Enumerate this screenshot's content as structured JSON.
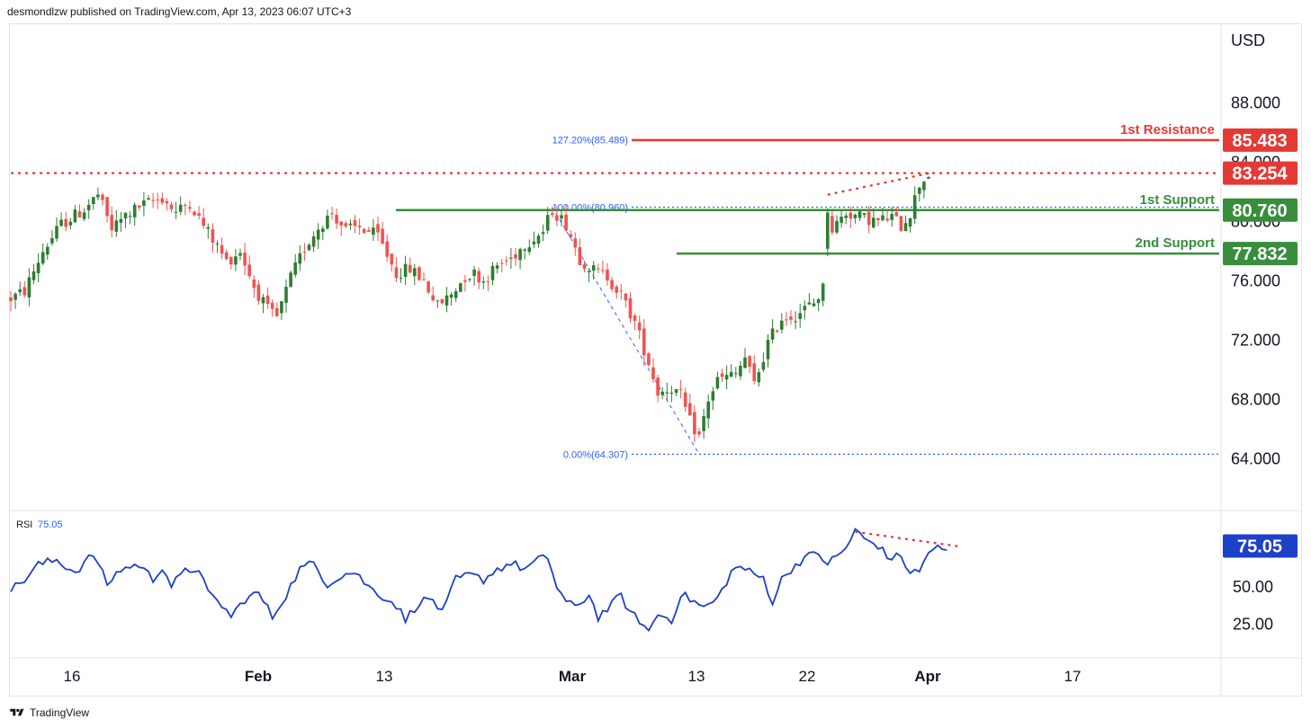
{
  "header": {
    "publisher": "desmondlzw published on TradingView.com, Apr 13, 2023 06:07 UTC+3"
  },
  "footer": {
    "brand": "TradingView"
  },
  "colors": {
    "bull": "#26a69a",
    "bull_body": "#2e7d32",
    "bear": "#ef5350",
    "support": "#388e3c",
    "resistance": "#e53935",
    "rsi": "#1e40c8",
    "fib": "#2962ff"
  },
  "chart_data": [
    {
      "type": "candlestick",
      "currency_label": "USD",
      "y_ticks": [
        "88.000",
        "84.000",
        "80.000",
        "76.000",
        "72.000",
        "68.000",
        "64.000"
      ],
      "y_tick_values": [
        88,
        84,
        80,
        76,
        72,
        68,
        64
      ],
      "ylim": [
        61.0,
        92.5
      ],
      "x_tick_labels": [
        {
          "label": "16",
          "bold": false
        },
        {
          "label": "Feb",
          "bold": true
        },
        {
          "label": "13",
          "bold": false
        },
        {
          "label": "Mar",
          "bold": true
        },
        {
          "label": "13",
          "bold": false
        },
        {
          "label": "22",
          "bold": false
        },
        {
          "label": "Apr",
          "bold": true
        },
        {
          "label": "17",
          "bold": false
        }
      ],
      "waypoints": [
        [
          0,
          74.8
        ],
        [
          3,
          75.3
        ],
        [
          7,
          78.0
        ],
        [
          11,
          79.8
        ],
        [
          16,
          80.8
        ],
        [
          19,
          81.8
        ],
        [
          22,
          79.5
        ],
        [
          25,
          80.4
        ],
        [
          28,
          81.0
        ],
        [
          33,
          81.6
        ],
        [
          36,
          80.6
        ],
        [
          39,
          81.3
        ],
        [
          41,
          80.2
        ],
        [
          44,
          78.8
        ],
        [
          47,
          77.3
        ],
        [
          50,
          78.0
        ],
        [
          53,
          75.6
        ],
        [
          56,
          74.0
        ],
        [
          58,
          73.5
        ],
        [
          61,
          76.2
        ],
        [
          64,
          78.2
        ],
        [
          67,
          79.6
        ],
        [
          70,
          80.6
        ],
        [
          73,
          79.4
        ],
        [
          76,
          79.6
        ],
        [
          80,
          79.0
        ],
        [
          84,
          76.5
        ],
        [
          87,
          76.8
        ],
        [
          90,
          76.0
        ],
        [
          93,
          74.3
        ],
        [
          96,
          75.1
        ],
        [
          99,
          76.3
        ],
        [
          101,
          76.5
        ],
        [
          103,
          76.0
        ],
        [
          106,
          77.0
        ],
        [
          109,
          77.5
        ],
        [
          112,
          78.5
        ],
        [
          116,
          79.3
        ],
        [
          118,
          80.8
        ],
        [
          121,
          79.8
        ],
        [
          124,
          77.5
        ],
        [
          127,
          76.7
        ],
        [
          130,
          76.3
        ],
        [
          133,
          75.0
        ],
        [
          136,
          73.2
        ],
        [
          139,
          70.5
        ],
        [
          141,
          68.5
        ],
        [
          144,
          68.8
        ],
        [
          146,
          68.2
        ],
        [
          148,
          66.5
        ],
        [
          150,
          65.5
        ],
        [
          152,
          68.0
        ],
        [
          154,
          69.3
        ],
        [
          158,
          69.7
        ],
        [
          160,
          70.8
        ],
        [
          162,
          69.0
        ],
        [
          165,
          71.8
        ],
        [
          168,
          73.5
        ],
        [
          171,
          73.7
        ],
        [
          175,
          74.5
        ],
        [
          177,
          75.5
        ],
        [
          178,
          80.9
        ],
        [
          179,
          79.5
        ],
        [
          182,
          80.6
        ],
        [
          185,
          80.3
        ],
        [
          189,
          80.0
        ],
        [
          192,
          80.3
        ],
        [
          194,
          79.7
        ],
        [
          196,
          80.6
        ],
        [
          198,
          82.5
        ],
        [
          200,
          83.2
        ]
      ],
      "gaps": [
        [
          177,
          178
        ]
      ],
      "resistance_dotted": 83.254,
      "levels": [
        {
          "label": "1st Resistance",
          "price": 85.483,
          "box": "85.483",
          "kind": "resistance"
        },
        {
          "label": "1st Support",
          "price": 80.76,
          "box": "80.760",
          "kind": "support"
        },
        {
          "label": "2nd Support",
          "price": 77.832,
          "box": "77.832",
          "kind": "support"
        }
      ],
      "current_price_box": "83.254",
      "fib_levels": [
        {
          "label": "127.20%(85.489)",
          "price": 85.489
        },
        {
          "label": "100.00%(80.960)",
          "price": 80.96
        },
        {
          "label": "0.00%(64.307)",
          "price": 64.307
        }
      ]
    },
    {
      "type": "line",
      "name": "RSI",
      "label": "RSI",
      "current_value": "75.05",
      "y_ticks": [
        "50.00",
        "25.00"
      ],
      "y_tick_values": [
        50,
        25
      ],
      "ylim": [
        5,
        100
      ],
      "waypoints": [
        [
          0,
          48
        ],
        [
          3,
          55
        ],
        [
          6,
          65
        ],
        [
          10,
          68
        ],
        [
          14,
          60
        ],
        [
          18,
          72
        ],
        [
          21,
          52
        ],
        [
          24,
          62
        ],
        [
          28,
          65
        ],
        [
          31,
          55
        ],
        [
          33,
          64
        ],
        [
          35,
          51
        ],
        [
          38,
          60
        ],
        [
          41,
          63
        ],
        [
          43,
          45
        ],
        [
          46,
          38
        ],
        [
          48,
          30
        ],
        [
          51,
          42
        ],
        [
          54,
          46
        ],
        [
          57,
          30
        ],
        [
          60,
          45
        ],
        [
          63,
          62
        ],
        [
          66,
          66
        ],
        [
          69,
          52
        ],
        [
          72,
          58
        ],
        [
          75,
          60
        ],
        [
          78,
          50
        ],
        [
          81,
          44
        ],
        [
          84,
          38
        ],
        [
          86,
          28
        ],
        [
          89,
          40
        ],
        [
          92,
          42
        ],
        [
          94,
          32
        ],
        [
          97,
          55
        ],
        [
          100,
          58
        ],
        [
          103,
          55
        ],
        [
          106,
          62
        ],
        [
          109,
          66
        ],
        [
          112,
          62
        ],
        [
          115,
          68
        ],
        [
          117,
          70
        ],
        [
          119,
          50
        ],
        [
          121,
          40
        ],
        [
          123,
          36
        ],
        [
          126,
          45
        ],
        [
          128,
          30
        ],
        [
          131,
          38
        ],
        [
          133,
          45
        ],
        [
          135,
          32
        ],
        [
          137,
          28
        ],
        [
          139,
          20
        ],
        [
          141,
          32
        ],
        [
          144,
          28
        ],
        [
          146,
          45
        ],
        [
          148,
          42
        ],
        [
          151,
          36
        ],
        [
          154,
          42
        ],
        [
          157,
          60
        ],
        [
          159,
          64
        ],
        [
          162,
          58
        ],
        [
          164,
          56
        ],
        [
          166,
          40
        ],
        [
          168,
          55
        ],
        [
          170,
          62
        ],
        [
          173,
          70
        ],
        [
          176,
          72
        ],
        [
          178,
          66
        ],
        [
          180,
          70
        ],
        [
          182,
          76
        ],
        [
          184,
          88
        ],
        [
          186,
          82
        ],
        [
          189,
          78
        ],
        [
          191,
          70
        ],
        [
          194,
          70
        ],
        [
          196,
          60
        ],
        [
          198,
          60
        ],
        [
          200,
          74
        ],
        [
          202,
          76
        ],
        [
          204,
          73
        ]
      ],
      "divergence_line": [
        [
          184,
          87
        ],
        [
          207,
          77
        ]
      ]
    }
  ]
}
